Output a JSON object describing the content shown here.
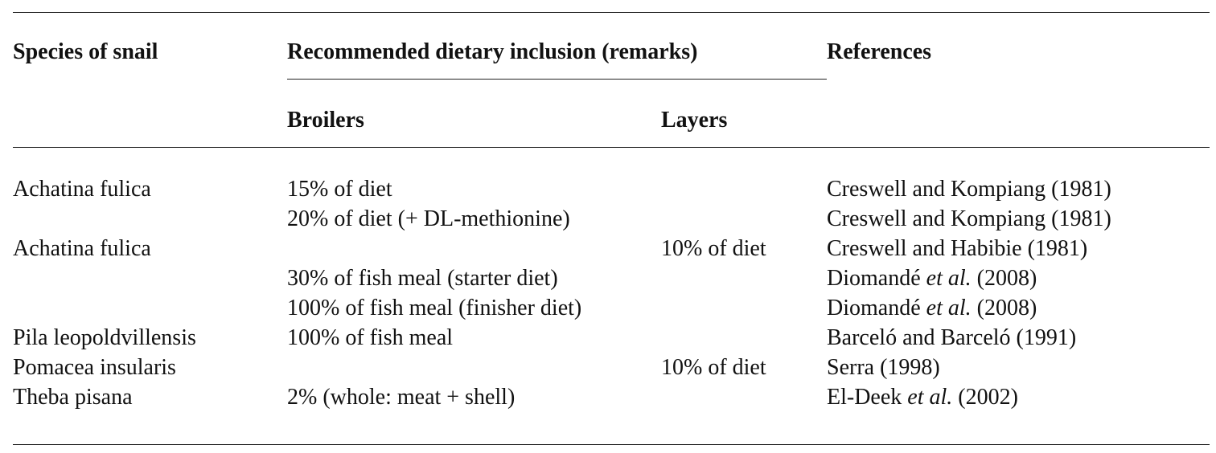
{
  "table": {
    "header": {
      "species": "Species of snail",
      "recommended": "Recommended dietary inclusion (remarks)",
      "references": "References",
      "broilers": "Broilers",
      "layers": "Layers"
    },
    "rows": [
      [
        "Achatina fulica",
        "15% of diet",
        null,
        [
          {
            "text": "Creswell and Kompiang (1981)"
          }
        ]
      ],
      [
        null,
        "20% of diet (+ DL-methionine)",
        null,
        [
          {
            "text": "Creswell and Kompiang (1981)"
          }
        ]
      ],
      [
        "Achatina fulica",
        null,
        "10% of diet",
        [
          {
            "text": "Creswell and Habibie (1981)"
          }
        ]
      ],
      [
        null,
        "30% of fish meal (starter diet)",
        null,
        [
          {
            "text": "Diomandé "
          },
          {
            "text": "et al.",
            "italic": true
          },
          {
            "text": " (2008)"
          }
        ]
      ],
      [
        null,
        "100% of fish meal (finisher diet)",
        null,
        [
          {
            "text": "Diomandé "
          },
          {
            "text": "et al.",
            "italic": true
          },
          {
            "text": " (2008)"
          }
        ]
      ],
      [
        "Pila leopoldvillensis",
        "100% of fish meal",
        null,
        [
          {
            "text": "Barceló and Barceló (1991)"
          }
        ]
      ],
      [
        "Pomacea insularis",
        null,
        "10% of diet",
        [
          {
            "text": "Serra (1998)"
          }
        ]
      ],
      [
        "Theba pisana",
        "2% (whole: meat + shell)",
        null,
        [
          {
            "text": "El-Deek "
          },
          {
            "text": "et al.",
            "italic": true
          },
          {
            "text": " (2002)"
          }
        ]
      ]
    ]
  }
}
